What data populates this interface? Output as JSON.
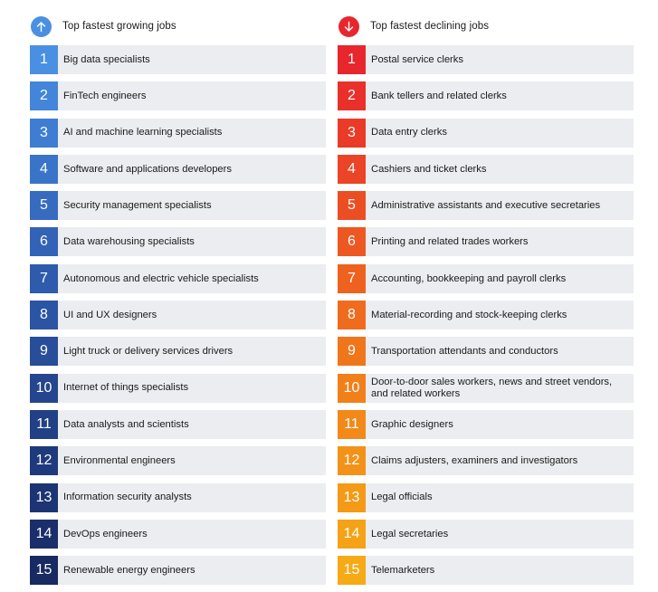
{
  "growing": {
    "title": "Top fastest growing jobs",
    "icon": "arrow-up-icon",
    "icon_color": "#4a90e2",
    "items": [
      {
        "rank": "1",
        "label": "Big data specialists",
        "color": "#4a90e2"
      },
      {
        "rank": "2",
        "label": "FinTech engineers",
        "color": "#4385d9"
      },
      {
        "rank": "3",
        "label": "AI and machine learning specialists",
        "color": "#3f7dd2"
      },
      {
        "rank": "4",
        "label": "Software and applications developers",
        "color": "#3a74c9"
      },
      {
        "rank": "5",
        "label": "Security management specialists",
        "color": "#366bc0"
      },
      {
        "rank": "6",
        "label": "Data warehousing specialists",
        "color": "#3263b6"
      },
      {
        "rank": "7",
        "label": "Autonomous and electric vehicle specialists",
        "color": "#2e5bac"
      },
      {
        "rank": "8",
        "label": "UI and UX designers",
        "color": "#2b54a3"
      },
      {
        "rank": "9",
        "label": "Light truck or delivery services drivers",
        "color": "#284d99"
      },
      {
        "rank": "10",
        "label": "Internet of things specialists",
        "color": "#25468f"
      },
      {
        "rank": "11",
        "label": "Data analysts and scientists",
        "color": "#224085"
      },
      {
        "rank": "12",
        "label": "Environmental engineers",
        "color": "#1f3a7c"
      },
      {
        "rank": "13",
        "label": "Information security analysts",
        "color": "#1c3473"
      },
      {
        "rank": "14",
        "label": "DevOps engineers",
        "color": "#1a2f6a"
      },
      {
        "rank": "15",
        "label": "Renewable energy engineers",
        "color": "#172a61"
      }
    ]
  },
  "declining": {
    "title": "Top fastest declining jobs",
    "icon": "arrow-down-icon",
    "icon_color": "#e8262e",
    "items": [
      {
        "rank": "1",
        "label": "Postal service clerks",
        "color": "#e8262e"
      },
      {
        "rank": "2",
        "label": "Bank tellers and related clerks",
        "color": "#e9302b"
      },
      {
        "rank": "3",
        "label": "Data entry clerks",
        "color": "#ea3a28"
      },
      {
        "rank": "4",
        "label": "Cashiers and ticket clerks",
        "color": "#eb4426"
      },
      {
        "rank": "5",
        "label": "Administrative assistants and executive secretaries",
        "color": "#ec4e24"
      },
      {
        "rank": "6",
        "label": "Printing and related trades workers",
        "color": "#ed5822"
      },
      {
        "rank": "7",
        "label": "Accounting, bookkeeping and payroll clerks",
        "color": "#ee6220"
      },
      {
        "rank": "8",
        "label": "Material-recording and stock-keeping clerks",
        "color": "#ef6c1e"
      },
      {
        "rank": "9",
        "label": "Transportation attendants and conductors",
        "color": "#f0761c"
      },
      {
        "rank": "10",
        "label": "Door-to-door sales workers, news and street vendors, and related workers",
        "color": "#f1801b"
      },
      {
        "rank": "11",
        "label": "Graphic designers",
        "color": "#f28919"
      },
      {
        "rank": "12",
        "label": "Claims adjusters, examiners and investigators",
        "color": "#f39218"
      },
      {
        "rank": "13",
        "label": "Legal officials",
        "color": "#f49a17"
      },
      {
        "rank": "14",
        "label": "Legal secretaries",
        "color": "#f5a216"
      },
      {
        "rank": "15",
        "label": "Telemarketers",
        "color": "#f6aa16"
      }
    ]
  }
}
